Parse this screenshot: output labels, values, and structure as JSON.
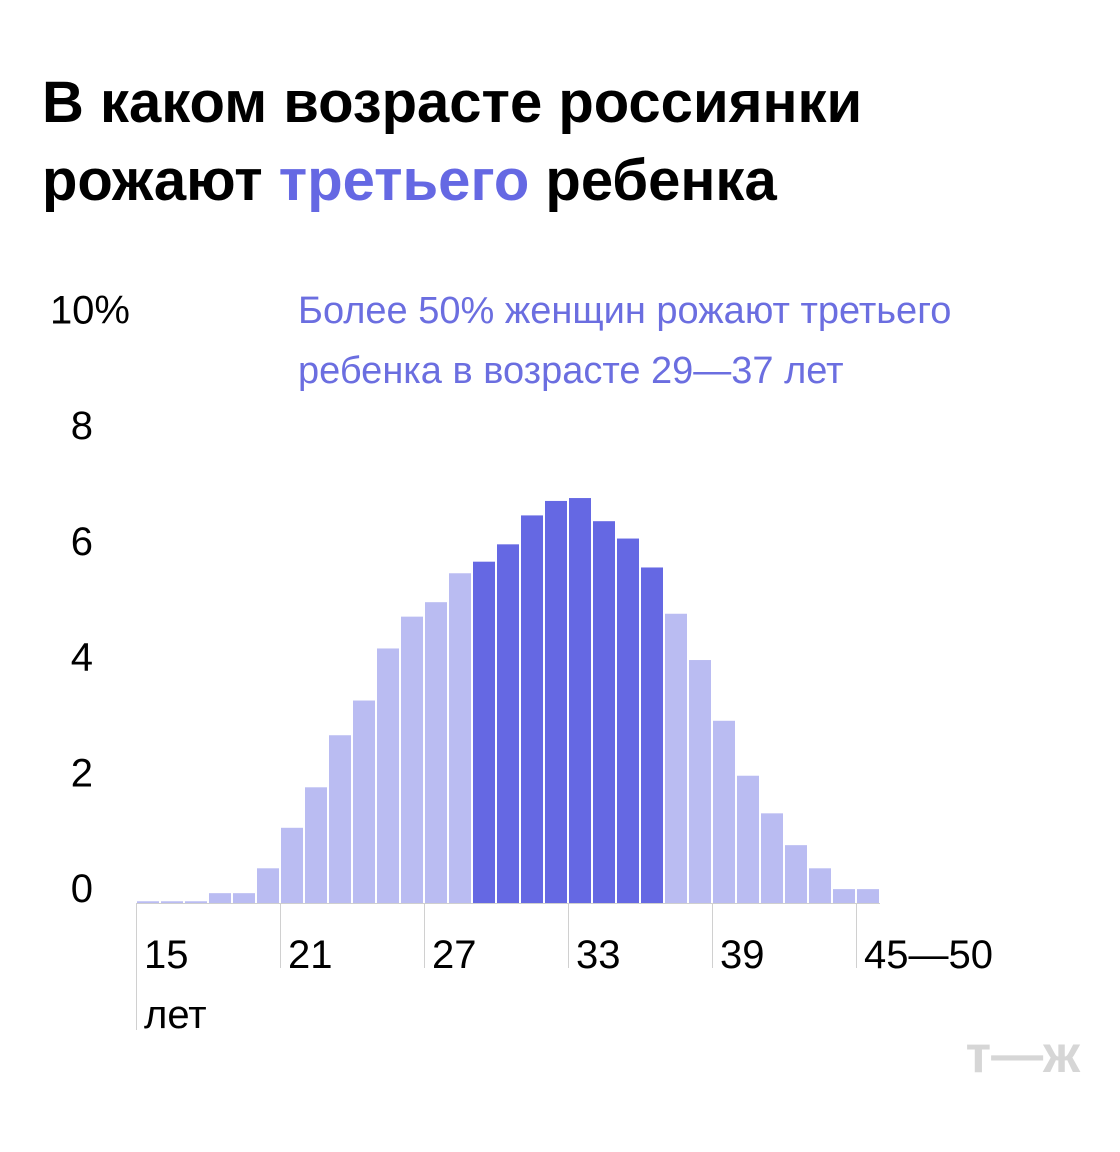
{
  "chart_data": {
    "type": "bar",
    "title_parts": [
      "В каком возрасте россиянки",
      "рожают",
      "третьего",
      "ребенка"
    ],
    "title_highlight_color": "#6568e3",
    "annotation": [
      "Более 50% женщин рожают третьего",
      "ребенка в возрасте 29—37 лет"
    ],
    "annotation_color": "#6b6ee0",
    "categories": [
      "15",
      null,
      null,
      null,
      null,
      null,
      "21",
      null,
      null,
      null,
      null,
      null,
      "27",
      null,
      null,
      null,
      null,
      null,
      "33",
      null,
      null,
      null,
      null,
      null,
      "39",
      null,
      null,
      null,
      null,
      null,
      "45—50"
    ],
    "x_unit": "лет",
    "values": [
      0.03,
      0.03,
      0.03,
      0.17,
      0.17,
      0.6,
      1.3,
      2.0,
      2.9,
      3.5,
      4.4,
      4.95,
      5.2,
      5.7,
      5.9,
      6.2,
      6.7,
      6.95,
      7.0,
      6.6,
      6.3,
      5.8,
      5.0,
      4.2,
      3.15,
      2.2,
      1.55,
      1.0,
      0.6,
      0.24,
      0.24
    ],
    "colors": [
      "#babcf2",
      "#babcf2",
      "#babcf2",
      "#babcf2",
      "#babcf2",
      "#babcf2",
      "#babcf2",
      "#babcf2",
      "#babcf2",
      "#babcf2",
      "#babcf2",
      "#babcf2",
      "#babcf2",
      "#babcf2",
      "#6568e3",
      "#6568e3",
      "#6568e3",
      "#6568e3",
      "#6568e3",
      "#6568e3",
      "#6568e3",
      "#6568e3",
      "#babcf2",
      "#babcf2",
      "#babcf2",
      "#babcf2",
      "#babcf2",
      "#babcf2",
      "#babcf2",
      "#babcf2",
      "#babcf2"
    ],
    "ylim": [
      0,
      10
    ],
    "yticks": [
      0,
      2,
      4,
      6,
      8,
      {
        "value": 10,
        "label": "10%"
      }
    ],
    "logo": "т—ж"
  }
}
